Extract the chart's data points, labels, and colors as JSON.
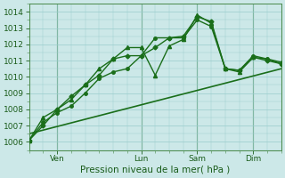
{
  "xlabel": "Pression niveau de la mer( hPa )",
  "bg_color": "#cce8e8",
  "grid_color": "#99cccc",
  "line_color": "#1a6e1a",
  "ylim": [
    1005.5,
    1014.5
  ],
  "yticks": [
    1006,
    1007,
    1008,
    1009,
    1010,
    1011,
    1012,
    1013,
    1014
  ],
  "xlim": [
    0,
    108
  ],
  "xtick_positions": [
    12,
    48,
    72,
    96
  ],
  "xtick_labels": [
    "Ven",
    "Lun",
    "Sam",
    "Dim"
  ],
  "vline_positions": [
    12,
    48,
    72,
    96
  ],
  "minor_x_step": 6,
  "series": [
    {
      "x": [
        0,
        6,
        12,
        18,
        24,
        30,
        36,
        42,
        48,
        54,
        60,
        66,
        72,
        78,
        84,
        90,
        96,
        102,
        108
      ],
      "y": [
        1006.1,
        1007.0,
        1008.0,
        1008.8,
        1009.5,
        1010.1,
        1011.1,
        1011.3,
        1011.3,
        1011.8,
        1012.4,
        1012.5,
        1013.7,
        1013.4,
        1010.5,
        1010.4,
        1011.2,
        1011.0,
        1010.8
      ],
      "marker": "D",
      "markersize": 2.5,
      "linewidth": 1.0,
      "zorder": 4
    },
    {
      "x": [
        0,
        6,
        12,
        18,
        24,
        30,
        36,
        42,
        48,
        54,
        60,
        66,
        72,
        78,
        84,
        90,
        96,
        102,
        108
      ],
      "y": [
        1006.1,
        1007.5,
        1008.0,
        1008.6,
        1009.5,
        1010.5,
        1011.1,
        1011.8,
        1011.8,
        1010.1,
        1011.9,
        1012.3,
        1013.8,
        1013.3,
        1010.5,
        1010.3,
        1011.2,
        1011.1,
        1010.9
      ],
      "marker": "^",
      "markersize": 3.0,
      "linewidth": 1.0,
      "zorder": 3
    },
    {
      "x": [
        0,
        6,
        12,
        18,
        24,
        30,
        36,
        42,
        48,
        54,
        60,
        66,
        72,
        78,
        84,
        90,
        96,
        102,
        108
      ],
      "y": [
        1006.1,
        1007.2,
        1007.8,
        1008.2,
        1009.0,
        1009.9,
        1010.3,
        1010.5,
        1011.3,
        1012.4,
        1012.4,
        1012.4,
        1013.5,
        1013.1,
        1010.5,
        1010.4,
        1011.3,
        1011.1,
        1010.8
      ],
      "marker": "o",
      "markersize": 2.5,
      "linewidth": 1.0,
      "zorder": 5
    },
    {
      "x": [
        0,
        108
      ],
      "y": [
        1006.5,
        1010.5
      ],
      "marker": "None",
      "markersize": 0,
      "linewidth": 1.2,
      "zorder": 2
    }
  ]
}
